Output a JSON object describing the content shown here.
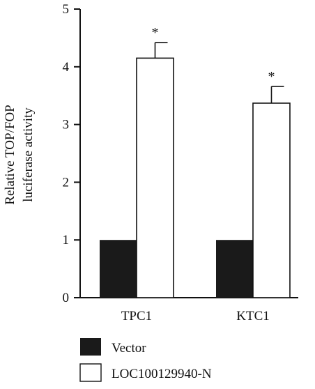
{
  "chart_data": {
    "type": "bar",
    "categories": [
      "TPC1",
      "KTC1"
    ],
    "series": [
      {
        "name": "Vector",
        "values": [
          1.0,
          1.0
        ],
        "color": "#1a1a1a",
        "fill": "solid"
      },
      {
        "name": "LOC100129940-N",
        "values": [
          4.15,
          3.37
        ],
        "errors": [
          0.27,
          0.29
        ],
        "color": "#ffffff",
        "fill": "outline"
      }
    ],
    "significance": [
      {
        "category": "TPC1",
        "series": "LOC100129940-N",
        "marker": "*"
      },
      {
        "category": "KTC1",
        "series": "LOC100129940-N",
        "marker": "*"
      }
    ],
    "ylabel_lines": [
      "Relative TOP/FOP",
      "luciferase activity"
    ],
    "xlabel": "",
    "title": "",
    "ylim": [
      0,
      5
    ],
    "yticks": [
      0,
      1,
      2,
      3,
      4,
      5
    ],
    "grid": false,
    "legend_position": "bottom-left"
  }
}
